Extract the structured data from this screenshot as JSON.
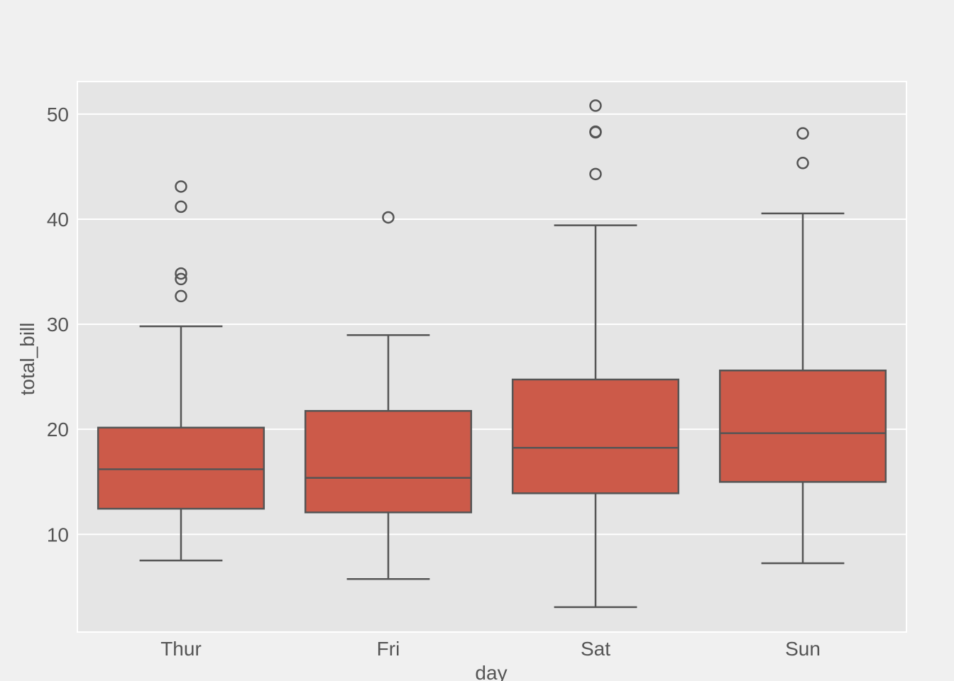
{
  "chart_data": {
    "type": "box",
    "title": "",
    "xlabel": "day",
    "ylabel": "total_bill",
    "categories": [
      "Thur",
      "Fri",
      "Sat",
      "Sun"
    ],
    "ylim": [
      0.7,
      53.1
    ],
    "yticks": [
      10,
      20,
      30,
      40,
      50
    ],
    "grid": true,
    "colors": {
      "box_fill": "#cc5a49",
      "line": "#555555",
      "panel": "#e5e5e5",
      "background": "#f0f0f0",
      "grid": "#ffffff"
    },
    "boxes": [
      {
        "category": "Thur",
        "whisker_low": 7.51,
        "q1": 12.44,
        "median": 16.2,
        "q3": 20.16,
        "whisker_high": 29.8,
        "outliers": [
          32.68,
          34.3,
          34.83,
          41.19,
          43.11
        ]
      },
      {
        "category": "Fri",
        "whisker_low": 5.75,
        "q1": 12.09,
        "median": 15.38,
        "q3": 21.75,
        "whisker_high": 28.97,
        "outliers": [
          40.17
        ]
      },
      {
        "category": "Sat",
        "whisker_low": 3.07,
        "q1": 13.91,
        "median": 18.24,
        "q3": 24.74,
        "whisker_high": 39.42,
        "outliers": [
          44.3,
          48.27,
          48.33,
          50.81
        ]
      },
      {
        "category": "Sun",
        "whisker_low": 7.25,
        "q1": 14.99,
        "median": 19.63,
        "q3": 25.6,
        "whisker_high": 40.55,
        "outliers": [
          45.35,
          48.17
        ]
      }
    ]
  }
}
